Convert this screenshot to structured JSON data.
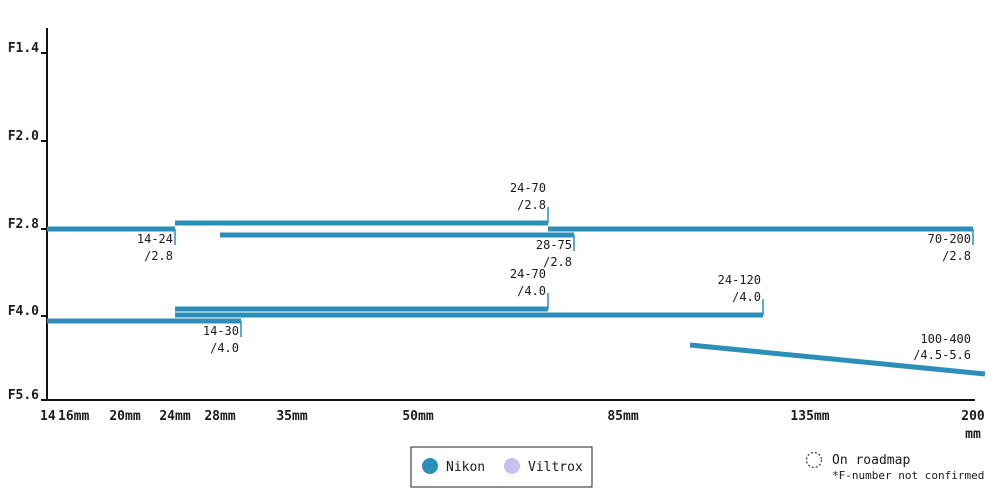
{
  "chart_data": {
    "type": "bar",
    "colors": {
      "nikon": "#2b8fba",
      "viltrox": "#c9c0f0",
      "axis": "#111111"
    },
    "y_ticks": [
      {
        "label": "F1.4",
        "f": 1.4
      },
      {
        "label": "F2.0",
        "f": 2.0
      },
      {
        "label": "F2.8",
        "f": 2.8
      },
      {
        "label": "F4.0",
        "f": 4.0
      },
      {
        "label": "F5.6",
        "f": 5.6
      }
    ],
    "x_ticks": [
      {
        "label": "14",
        "mm": 14
      },
      {
        "label": "16mm",
        "mm": 16
      },
      {
        "label": "20mm",
        "mm": 20
      },
      {
        "label": "24mm",
        "mm": 24
      },
      {
        "label": "28mm",
        "mm": 28
      },
      {
        "label": "35mm",
        "mm": 35
      },
      {
        "label": "50mm",
        "mm": 50
      },
      {
        "label": "85mm",
        "mm": 85
      },
      {
        "label": "135mm",
        "mm": 135
      },
      {
        "label": "200",
        "mm": 200,
        "sub": "mm"
      }
    ],
    "lenses": [
      {
        "brand": "Nikon",
        "from_mm": 14,
        "to_mm": 24,
        "f_start": 2.8,
        "f_end": 2.8,
        "label1": "14-24",
        "label2": "/2.8"
      },
      {
        "brand": "Nikon",
        "from_mm": 24,
        "to_mm": 70,
        "f_start": 2.8,
        "f_end": 2.8,
        "label1": "24-70",
        "label2": "/2.8"
      },
      {
        "brand": "Nikon",
        "from_mm": 28,
        "to_mm": 75,
        "f_start": 2.8,
        "f_end": 2.8,
        "label1": "28-75",
        "label2": "/2.8"
      },
      {
        "brand": "Nikon",
        "from_mm": 70,
        "to_mm": 200,
        "f_start": 2.8,
        "f_end": 2.8,
        "label1": "70-200",
        "label2": "/2.8"
      },
      {
        "brand": "Nikon",
        "from_mm": 24,
        "to_mm": 70,
        "f_start": 4.0,
        "f_end": 4.0,
        "label1": "24-70",
        "label2": "/4.0"
      },
      {
        "brand": "Nikon",
        "from_mm": 24,
        "to_mm": 120,
        "f_start": 4.0,
        "f_end": 4.0,
        "label1": "24-120",
        "label2": "/4.0"
      },
      {
        "brand": "Nikon",
        "from_mm": 14,
        "to_mm": 30,
        "f_start": 4.0,
        "f_end": 4.0,
        "label1": "14-30",
        "label2": "/4.0"
      },
      {
        "brand": "Nikon",
        "from_mm": 100,
        "to_mm": 400,
        "f_start": 4.5,
        "f_end": 5.6,
        "label1": "100-400",
        "label2": "/4.5-5.6"
      }
    ],
    "legend": {
      "items": [
        {
          "name": "Nikon",
          "color": "#2b8fba"
        },
        {
          "name": "Viltrox",
          "color": "#c9c0f0"
        }
      ],
      "roadmap_label": "On roadmap",
      "roadmap_note": "*F-number not confirmed"
    }
  }
}
